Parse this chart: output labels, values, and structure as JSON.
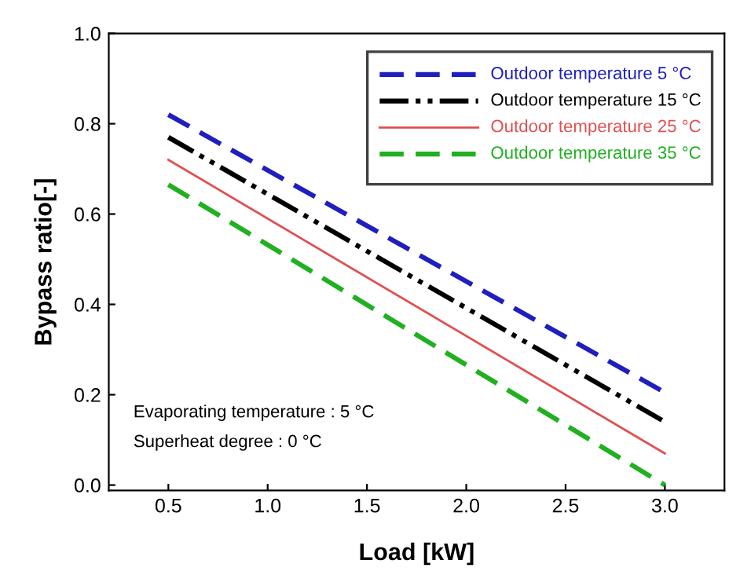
{
  "chart_data": {
    "type": "line",
    "xlabel": "Load [kW]",
    "ylabel": "Bypass ratio[-]",
    "x": [
      0.5,
      3.0
    ],
    "series": [
      {
        "name": "Outdoor temperature 5 °C",
        "color": "#1f1fbf",
        "values": [
          0.82,
          0.205
        ],
        "line_style": "dashed"
      },
      {
        "name": "Outdoor temperature 15 °C",
        "color": "#000000",
        "values": [
          0.77,
          0.14
        ],
        "line_style": "dashdotdot"
      },
      {
        "name": "Outdoor temperature 25 °C",
        "color": "#e05050",
        "values": [
          0.72,
          0.07
        ],
        "line_style": "solid"
      },
      {
        "name": "Outdoor temperature 35 °C",
        "color": "#20b020",
        "values": [
          0.665,
          0.0
        ],
        "line_style": "dashed"
      }
    ],
    "xlim": [
      0.2,
      3.3
    ],
    "xticks": [
      {
        "value": 0.5,
        "label": "0.5"
      },
      {
        "value": 1.0,
        "label": "1.0"
      },
      {
        "value": 1.5,
        "label": "1.5"
      },
      {
        "value": 2.0,
        "label": "2.0"
      },
      {
        "value": 2.5,
        "label": "2.5"
      },
      {
        "value": 3.0,
        "label": "3.0"
      }
    ],
    "ylim": [
      -0.012,
      1.0
    ],
    "yticks": [
      {
        "value": 0,
        "label": "0.0"
      },
      {
        "value": 0.2,
        "label": "0.2"
      },
      {
        "value": 0.4,
        "label": "0.4"
      },
      {
        "value": 0.6,
        "label": "0.6"
      },
      {
        "value": 0.8,
        "label": "0.8"
      },
      {
        "value": 1.0,
        "label": "1.0"
      }
    ],
    "grid": false,
    "legend": "top right",
    "annotations": [
      "Evaporating temperature : 5 °C",
      "Superheat degree : 0 °C"
    ]
  }
}
